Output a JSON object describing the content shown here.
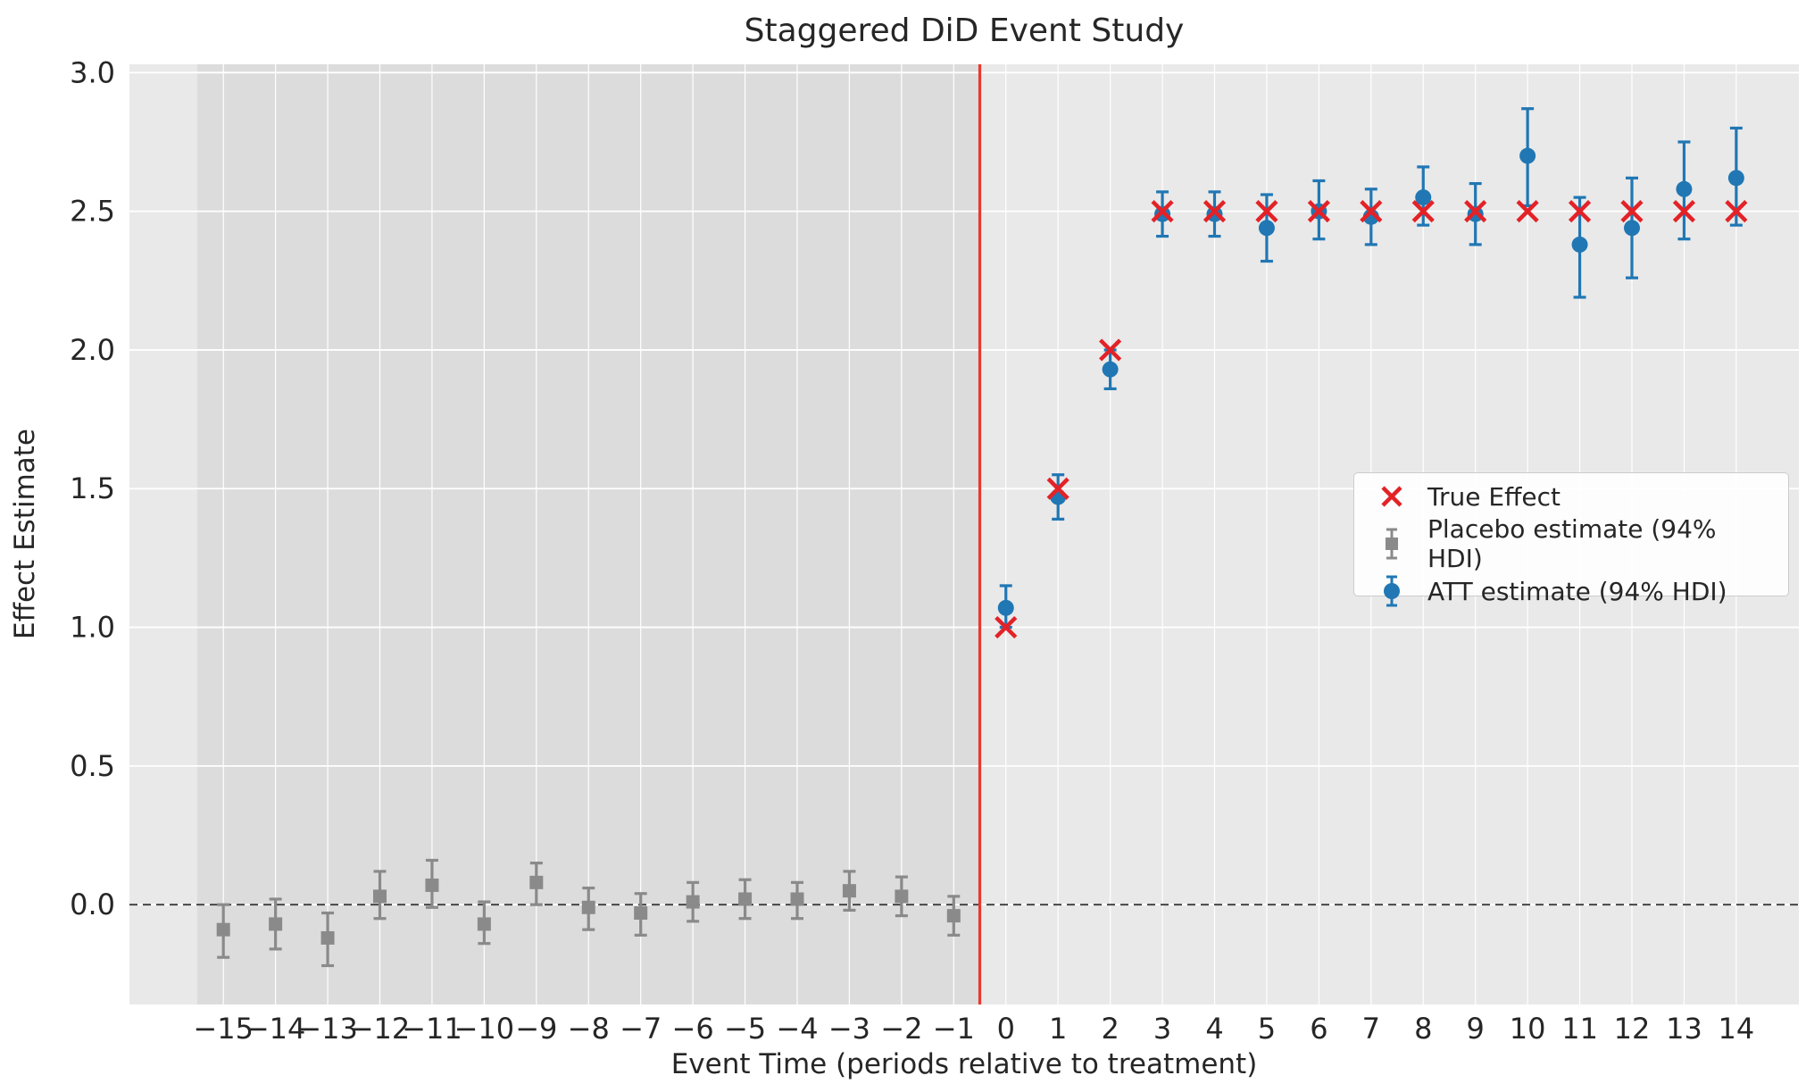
{
  "legend": {
    "true_effect": "True Effect",
    "placebo": "Placebo estimate (94% HDI)",
    "att": "ATT estimate (94% HDI)"
  },
  "colors": {
    "true_effect": "#e32227",
    "placebo": "#8a8a8a",
    "att": "#2077b4",
    "plot_bg": "#e9e9e9",
    "pretreat_shade": "#dcdcdc",
    "grid": "#ffffff",
    "treatment_line": "#e8392f",
    "zero_line": "#3a3a3a",
    "text": "#262626"
  },
  "chart_data": {
    "type": "scatter",
    "title": "Staggered DiD Event Study",
    "xlabel": "Event Time (periods relative to treatment)",
    "ylabel": "Effect Estimate",
    "xlim": [
      -16.8,
      15.2
    ],
    "ylim": [
      -0.36,
      3.03
    ],
    "x_ticks": [
      -15,
      -14,
      -13,
      -12,
      -11,
      -10,
      -9,
      -8,
      -7,
      -6,
      -5,
      -4,
      -3,
      -2,
      -1,
      0,
      1,
      2,
      3,
      4,
      5,
      6,
      7,
      8,
      9,
      10,
      11,
      12,
      13,
      14
    ],
    "y_ticks": [
      0.0,
      0.5,
      1.0,
      1.5,
      2.0,
      2.5,
      3.0
    ],
    "grid": true,
    "legend_position": "center right",
    "treatment_line_x": -0.5,
    "pretreatment_region": [
      -15.5,
      -0.5
    ],
    "zero_line_y": 0,
    "series": [
      {
        "name": "True Effect",
        "marker": "x",
        "x": [
          0,
          1,
          2,
          3,
          4,
          5,
          6,
          7,
          8,
          9,
          10,
          11,
          12,
          13,
          14
        ],
        "y": [
          1.0,
          1.5,
          2.0,
          2.5,
          2.5,
          2.5,
          2.5,
          2.5,
          2.5,
          2.5,
          2.5,
          2.5,
          2.5,
          2.5,
          2.5
        ]
      },
      {
        "name": "Placebo estimate (94% HDI)",
        "marker": "square",
        "x": [
          -15,
          -14,
          -13,
          -12,
          -11,
          -10,
          -9,
          -8,
          -7,
          -6,
          -5,
          -4,
          -3,
          -2,
          -1
        ],
        "y": [
          -0.09,
          -0.07,
          -0.12,
          0.03,
          0.07,
          -0.07,
          0.08,
          -0.01,
          -0.03,
          0.01,
          0.02,
          0.02,
          0.05,
          0.03,
          -0.04
        ],
        "ci_low": [
          -0.19,
          -0.16,
          -0.22,
          -0.05,
          -0.01,
          -0.14,
          0.0,
          -0.09,
          -0.11,
          -0.06,
          -0.05,
          -0.05,
          -0.02,
          -0.04,
          -0.11
        ],
        "ci_high": [
          0.0,
          0.02,
          -0.03,
          0.12,
          0.16,
          0.01,
          0.15,
          0.06,
          0.04,
          0.08,
          0.09,
          0.08,
          0.12,
          0.1,
          0.03
        ]
      },
      {
        "name": "ATT estimate (94% HDI)",
        "marker": "circle",
        "x": [
          0,
          1,
          2,
          3,
          4,
          5,
          6,
          7,
          8,
          9,
          10,
          11,
          12,
          13,
          14
        ],
        "y": [
          1.07,
          1.47,
          1.93,
          2.49,
          2.49,
          2.44,
          2.5,
          2.48,
          2.55,
          2.49,
          2.7,
          2.38,
          2.44,
          2.58,
          2.62
        ],
        "ci_low": [
          1.0,
          1.39,
          1.86,
          2.41,
          2.41,
          2.32,
          2.4,
          2.38,
          2.45,
          2.38,
          2.52,
          2.19,
          2.26,
          2.4,
          2.45
        ],
        "ci_high": [
          1.15,
          1.55,
          2.0,
          2.57,
          2.57,
          2.56,
          2.61,
          2.58,
          2.66,
          2.6,
          2.87,
          2.55,
          2.62,
          2.75,
          2.8
        ]
      }
    ]
  }
}
